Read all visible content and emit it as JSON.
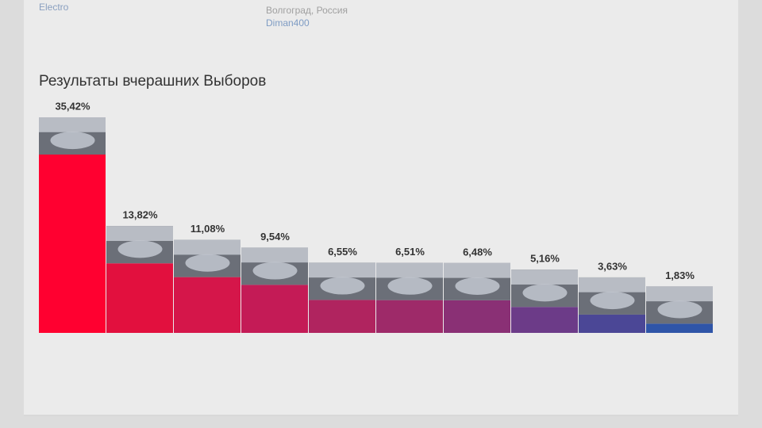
{
  "header": {
    "user_link": "Electro",
    "location": "Волгоград, Россия",
    "author_link": "Diman400"
  },
  "chart_data": {
    "type": "bar",
    "title": "Результаты вчерашних Выборов",
    "values": [
      35.42,
      13.82,
      11.08,
      9.54,
      6.55,
      6.51,
      6.48,
      5.16,
      3.63,
      1.83
    ],
    "value_labels": [
      "35,42%",
      "13,82%",
      "11,08%",
      "9,54%",
      "6,55%",
      "6,51%",
      "6,48%",
      "5,16%",
      "3,63%",
      "1,83%"
    ],
    "colors": [
      "#ff0030",
      "#e2103e",
      "#d5164a",
      "#c41b56",
      "#b0245f",
      "#9e2a69",
      "#8a3075",
      "#6c3b88",
      "#4b4796",
      "#2f55a8"
    ]
  }
}
